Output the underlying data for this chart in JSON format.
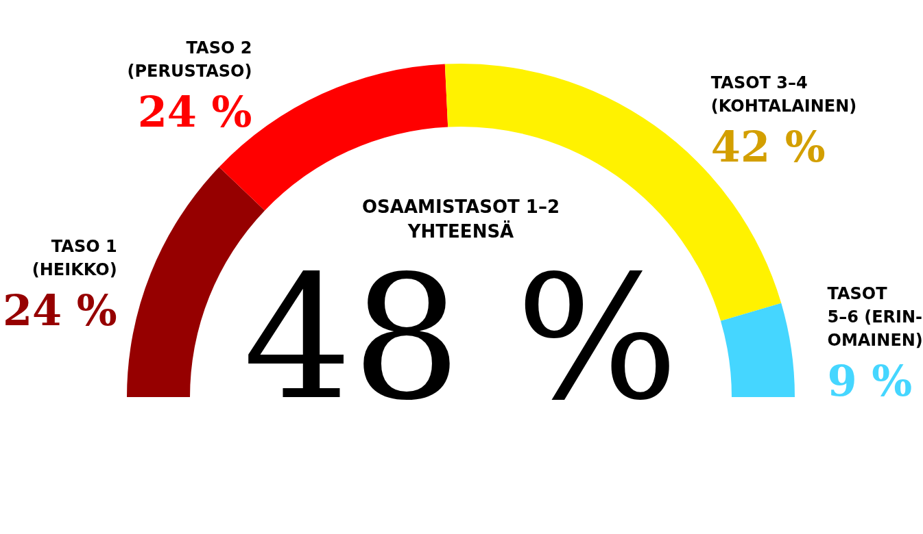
{
  "chart_data": {
    "type": "donut",
    "categories": [
      "TASO 1\n(HEIKKO)",
      "TASO 2\n(PERUSTASO)",
      "TASOT 3–4\n(KOHTALAINEN)",
      "TASOT\n5–6 (ERIN-\nOMAINEN)"
    ],
    "values": [
      24,
      24,
      42,
      9
    ],
    "colors": [
      "#960000",
      "#ff0000",
      "#fff200",
      "#45d6ff"
    ],
    "value_labels": [
      "24 %",
      "24 %",
      "42 %",
      "9 %"
    ],
    "annotations": [
      "OSAAMISTASOT 1–2\nYHTEENSÄ",
      "48 %"
    ],
    "legend": false
  }
}
